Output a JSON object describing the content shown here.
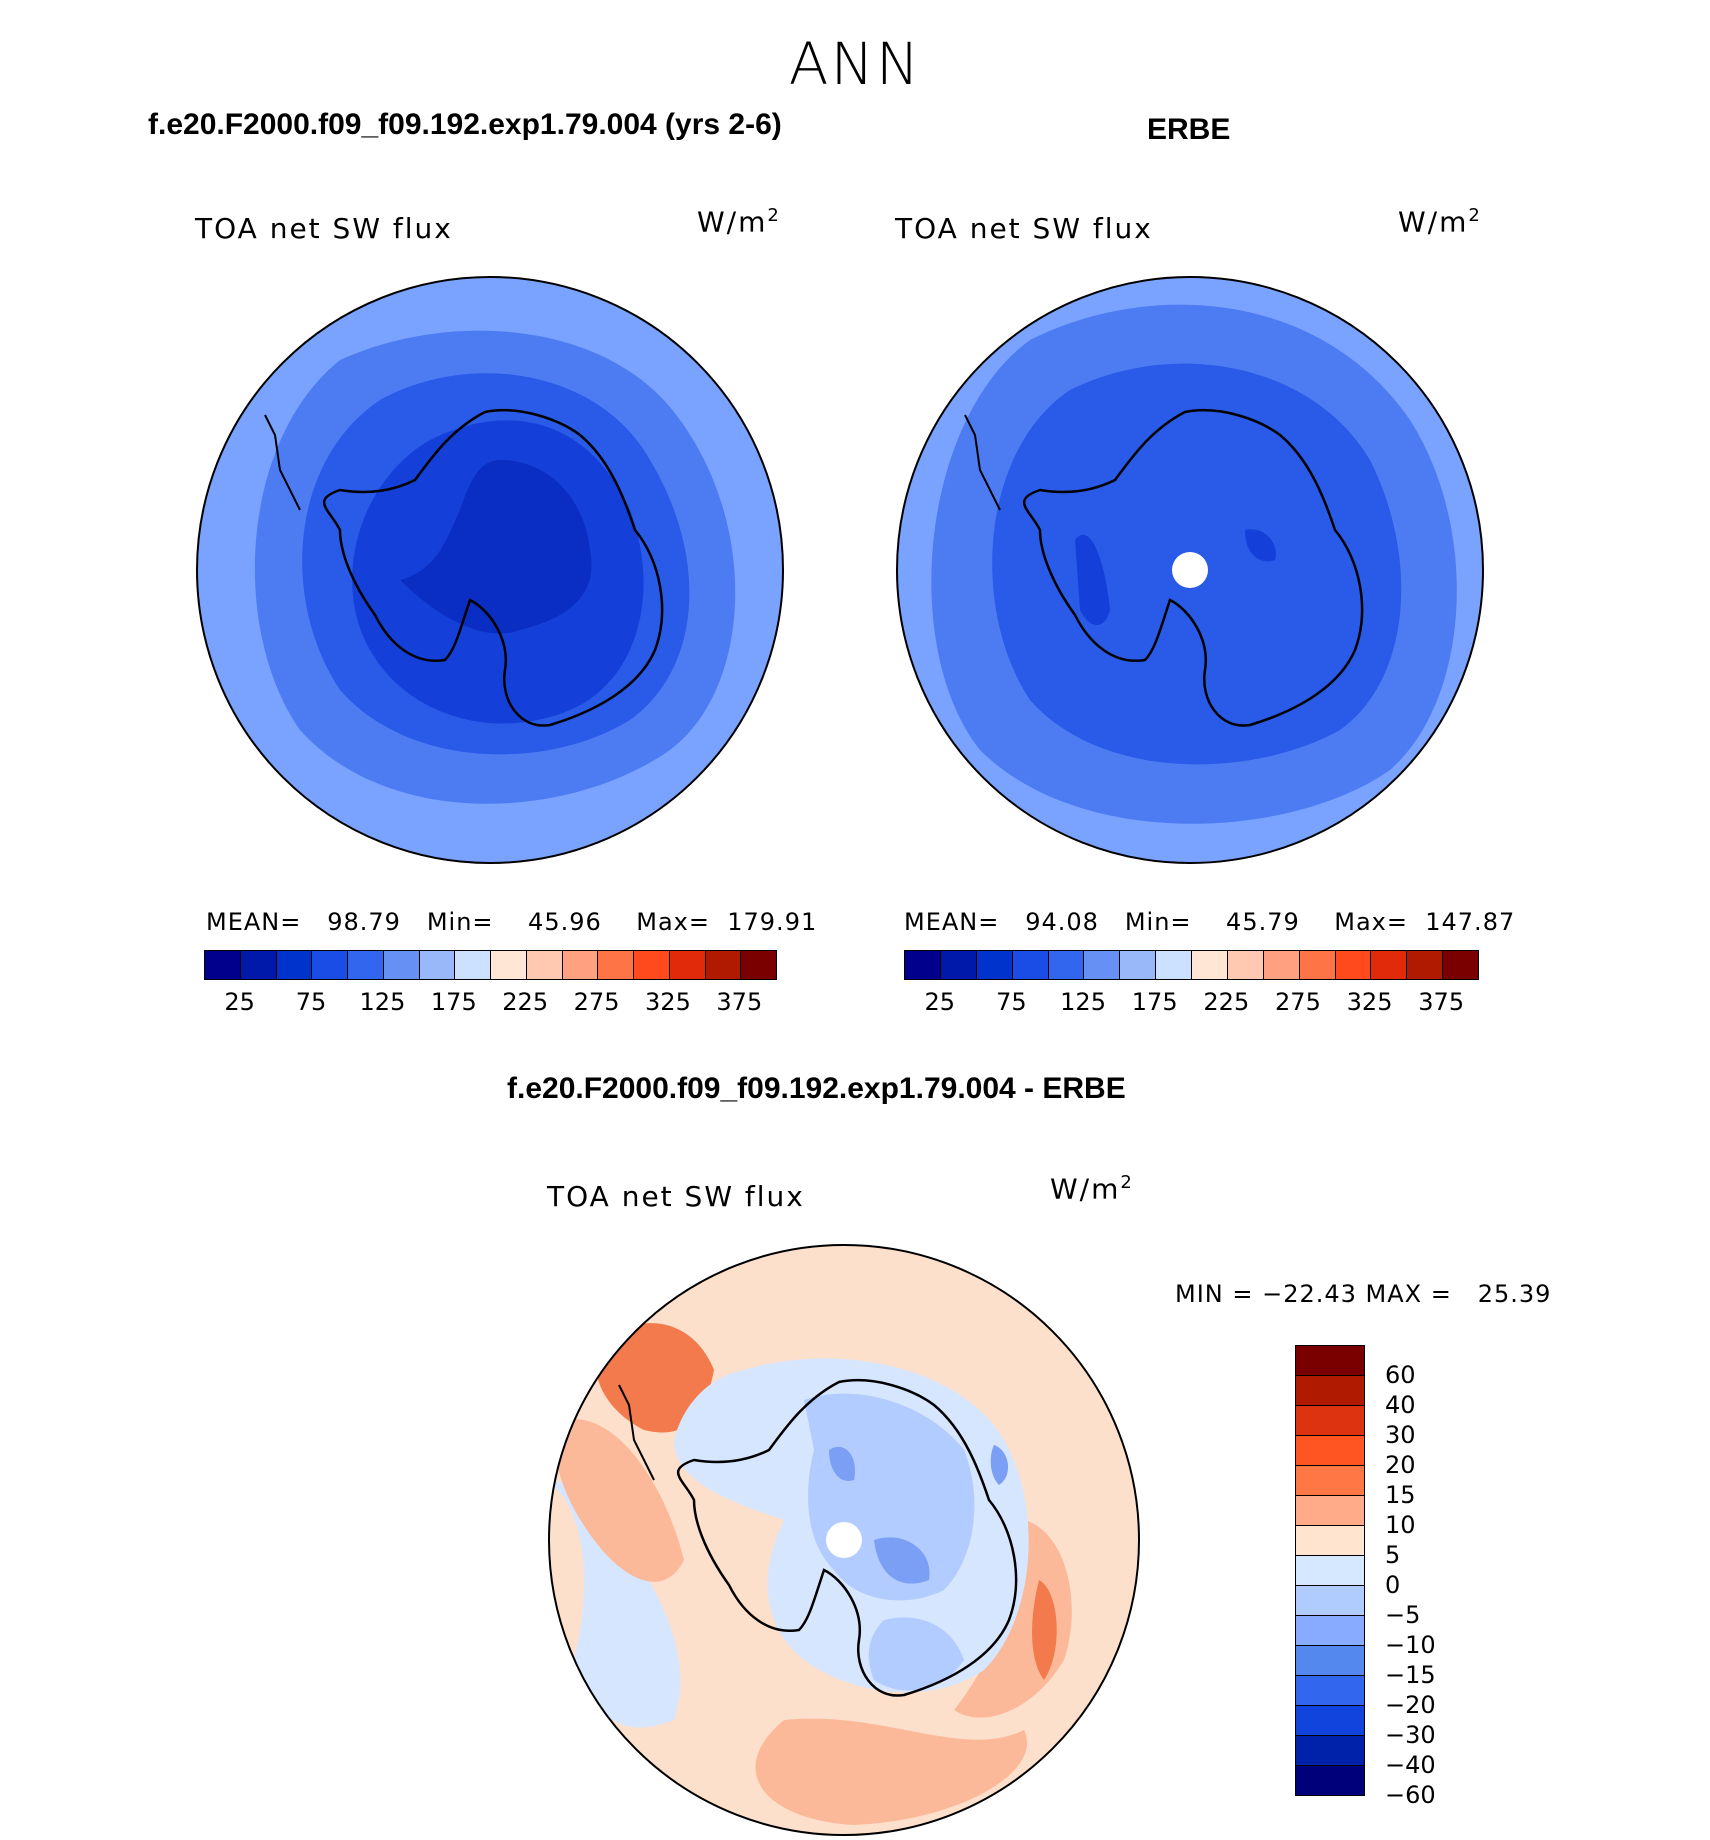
{
  "figure_title": "ANN",
  "panel1": {
    "title": "f.e20.F2000.f09_f09.192.exp1.79.004 (yrs 2-6)",
    "variable": "TOA net SW flux",
    "units_base": "W/m",
    "units_exp": "2",
    "stats": "MEAN=   98.79   Min=    45.96    Max=  179.91"
  },
  "panel2": {
    "title": "ERBE",
    "variable": "TOA net SW flux",
    "units_base": "W/m",
    "units_exp": "2",
    "stats": "MEAN=   94.08   Min=    45.79    Max=  147.87"
  },
  "panel3": {
    "title": "f.e20.F2000.f09_f09.192.exp1.79.004 - ERBE",
    "variable": "TOA net SW flux",
    "units_base": "W/m",
    "units_exp": "2",
    "stats": "MIN = −22.43 MAX =   25.39"
  },
  "colorbar_abs": {
    "colors": [
      "#00008c",
      "#0019aa",
      "#0033cc",
      "#1a4ce6",
      "#3366ee",
      "#6690f4",
      "#99b8fa",
      "#cce0ff",
      "#ffe6d5",
      "#ffc8b0",
      "#ffa080",
      "#ff7446",
      "#ff4a1e",
      "#e02a0a",
      "#b01a00",
      "#7a0000"
    ],
    "tick_labels": [
      "25",
      "75",
      "125",
      "175",
      "225",
      "275",
      "325",
      "375"
    ]
  },
  "colorbar_diff": {
    "colors": [
      "#7a0000",
      "#b01a00",
      "#dd3311",
      "#ff5522",
      "#ff7744",
      "#ffaa88",
      "#ffe4d0",
      "#d6e8ff",
      "#b0ccff",
      "#88aaff",
      "#5588ee",
      "#3366ee",
      "#1144dd",
      "#0022aa",
      "#00007a"
    ],
    "tick_labels": [
      "60",
      "40",
      "30",
      "20",
      "15",
      "10",
      "5",
      "0",
      "−5",
      "−10",
      "−15",
      "−20",
      "−30",
      "−40",
      "−60"
    ]
  },
  "map_colors": {
    "outer_light": "#a8c4ff",
    "ring1": "#7aa3ff",
    "ring2": "#4d7cf2",
    "ring3": "#2a5ae8",
    "ring4": "#1440d9",
    "core": "#0a2dc4",
    "diff_pos_bg": "#fde0cc",
    "diff_pos_mid": "#fbb99a",
    "diff_pos_strong": "#f27a4c",
    "diff_neg_light": "#d7e6ff",
    "diff_neg_mid": "#b3ccff",
    "diff_neg_strong": "#7a9ff5",
    "pole_hole": "#ffffff"
  }
}
